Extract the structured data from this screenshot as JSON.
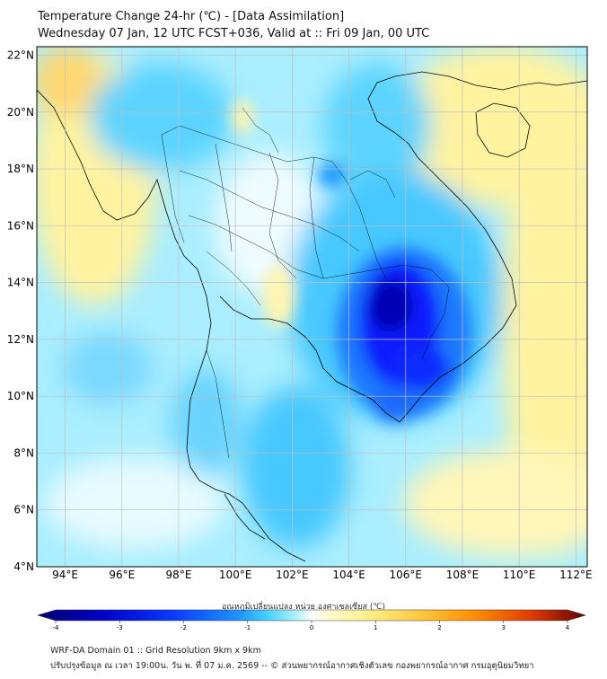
{
  "header": {
    "title_line1": "Temperature Change 24-hr (℃) - [Data Assimilation]",
    "title_line2": "Wednesday 07 Jan, 12 UTC FCST+036, Valid at :: Fri 09 Jan, 00 UTC"
  },
  "map": {
    "lat_labels": [
      "22°N",
      "20°N",
      "18°N",
      "16°N",
      "14°N",
      "12°N",
      "10°N",
      "8°N",
      "6°N",
      "4°N"
    ],
    "lon_labels": [
      "94°E",
      "96°E",
      "98°E",
      "100°E",
      "102°E",
      "104°E",
      "106°E",
      "108°E",
      "110°E",
      "112°E"
    ],
    "lat_range": [
      4,
      22.3
    ],
    "lon_range": [
      93,
      112.4
    ],
    "grid": true
  },
  "colorbar": {
    "label": "อุณหภูมิเปลี่ยนแปลง หน่วย องศาเซลเซียส (℃)",
    "ticks": [
      "-4",
      "-3",
      "-2",
      "-1",
      "0",
      "1",
      "2",
      "3",
      "4"
    ],
    "range": [
      -4,
      4
    ],
    "colors": [
      "#00006e",
      "#0000c8",
      "#0a3cff",
      "#1e96ff",
      "#46d2ff",
      "#aaf0ff",
      "#e6fbff",
      "#ffffff",
      "#fffbd2",
      "#fff08c",
      "#ffc83c",
      "#ff8c00",
      "#e13c00",
      "#a00000",
      "#640000"
    ]
  },
  "footer": {
    "line1": "WRF-DA Domain 01 :: Grid Resolution 9km x 9km",
    "line2": "ปรับปรุงข้อมูล ณ เวลา 19:00น. วัน พ. ที่ 07 ม.ค. 2569 -- © ส่วนพยากรณ์อากาศเชิงตัวเลข กองพยากรณ์อากาศ กรมอุตุนิยมวิทยา"
  }
}
